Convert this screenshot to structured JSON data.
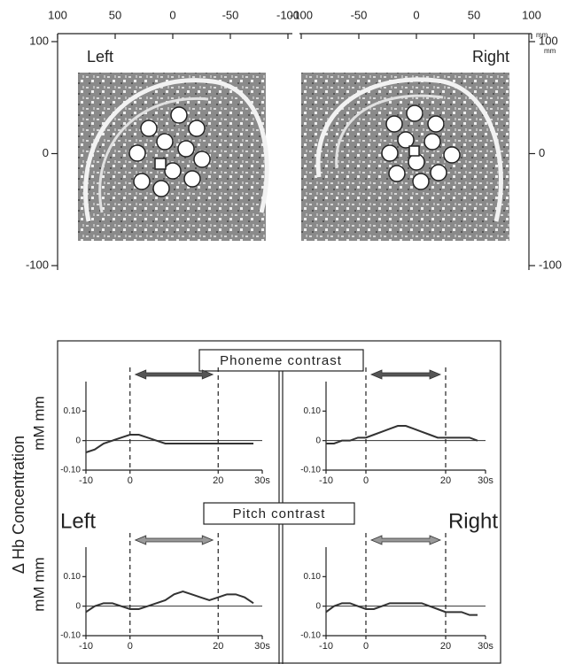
{
  "brain_map": {
    "x_ticks_left": [
      100,
      50,
      0,
      -50,
      -100
    ],
    "x_ticks_right": [
      -100,
      -50,
      0,
      50,
      100
    ],
    "y_ticks": [
      100,
      0,
      -100
    ],
    "unit": "mm",
    "labels": [
      "Left",
      "Right"
    ]
  },
  "contrasts": [
    "Phoneme contrast",
    "Pitch contrast"
  ],
  "y_label": "Δ Hb Concentration",
  "y_unit": "mM mm",
  "chart_data": [
    {
      "type": "line",
      "x": [
        -10,
        -8,
        -6,
        -4,
        -2,
        0,
        2,
        4,
        6,
        8,
        10,
        12,
        14,
        16,
        18,
        20,
        22,
        24,
        26,
        28
      ],
      "series": [
        {
          "color": "#333333",
          "values": [
            -0.04,
            -0.03,
            -0.01,
            0,
            0.01,
            0.02,
            0.02,
            0.01,
            0,
            -0.01,
            -0.01,
            -0.01,
            -0.01,
            -0.01,
            -0.01,
            -0.01,
            -0.01,
            -0.01,
            -0.01,
            -0.01
          ]
        }
      ],
      "xlim": [
        -10,
        30
      ],
      "ylim": [
        -0.1,
        0.2
      ],
      "xticks": [
        -10,
        0,
        20,
        {
          "value": 30,
          "label": "30s"
        }
      ],
      "yticks": [
        {
          "value": 0.1,
          "label": "0.10"
        },
        0,
        {
          "value": -0.1,
          "label": "-0.10"
        }
      ]
    },
    {
      "type": "line",
      "x": [
        -10,
        -8,
        -6,
        -4,
        -2,
        0,
        2,
        4,
        6,
        8,
        10,
        12,
        14,
        16,
        18,
        20,
        22,
        24,
        26,
        28
      ],
      "series": [
        {
          "color": "#333333",
          "values": [
            -0.01,
            -0.01,
            0,
            0,
            0.01,
            0.01,
            0.02,
            0.03,
            0.04,
            0.05,
            0.05,
            0.04,
            0.03,
            0.02,
            0.01,
            0.01,
            0.01,
            0.01,
            0.01,
            0
          ]
        }
      ],
      "xlim": [
        -10,
        30
      ],
      "ylim": [
        -0.1,
        0.2
      ],
      "xticks": [
        -10,
        0,
        20,
        {
          "value": 30,
          "label": "30s"
        }
      ],
      "yticks": [
        {
          "value": 0.1,
          "label": "0.10"
        },
        0,
        {
          "value": -0.1,
          "label": "-0.10"
        }
      ]
    },
    {
      "type": "line",
      "x": [
        -10,
        -8,
        -6,
        -4,
        -2,
        0,
        2,
        4,
        6,
        8,
        10,
        12,
        14,
        16,
        18,
        20,
        22,
        24,
        26,
        28
      ],
      "series": [
        {
          "color": "#333333",
          "values": [
            -0.02,
            0,
            0.01,
            0.01,
            0,
            -0.01,
            -0.01,
            0,
            0.01,
            0.02,
            0.04,
            0.05,
            0.04,
            0.03,
            0.02,
            0.03,
            0.04,
            0.04,
            0.03,
            0.01
          ]
        }
      ],
      "xlim": [
        -10,
        30
      ],
      "ylim": [
        -0.1,
        0.2
      ],
      "xticks": [
        -10,
        0,
        20,
        {
          "value": 30,
          "label": "30s"
        }
      ],
      "yticks": [
        {
          "value": 0.1,
          "label": "0.10"
        },
        0,
        {
          "value": -0.1,
          "label": "-0.10"
        }
      ]
    },
    {
      "type": "line",
      "x": [
        -10,
        -8,
        -6,
        -4,
        -2,
        0,
        2,
        4,
        6,
        8,
        10,
        12,
        14,
        16,
        18,
        20,
        22,
        24,
        26,
        28
      ],
      "series": [
        {
          "color": "#333333",
          "values": [
            -0.02,
            0,
            0.01,
            0.01,
            0,
            -0.01,
            -0.01,
            0,
            0.01,
            0.01,
            0.01,
            0.01,
            0.01,
            0,
            -0.01,
            -0.02,
            -0.02,
            -0.02,
            -0.03,
            -0.03
          ]
        }
      ],
      "xlim": [
        -10,
        30
      ],
      "ylim": [
        -0.1,
        0.2
      ],
      "xticks": [
        -10,
        0,
        20,
        {
          "value": 30,
          "label": "30s"
        }
      ],
      "yticks": [
        {
          "value": 0.1,
          "label": "0.10"
        },
        0,
        {
          "value": -0.1,
          "label": "-0.10"
        }
      ]
    }
  ]
}
